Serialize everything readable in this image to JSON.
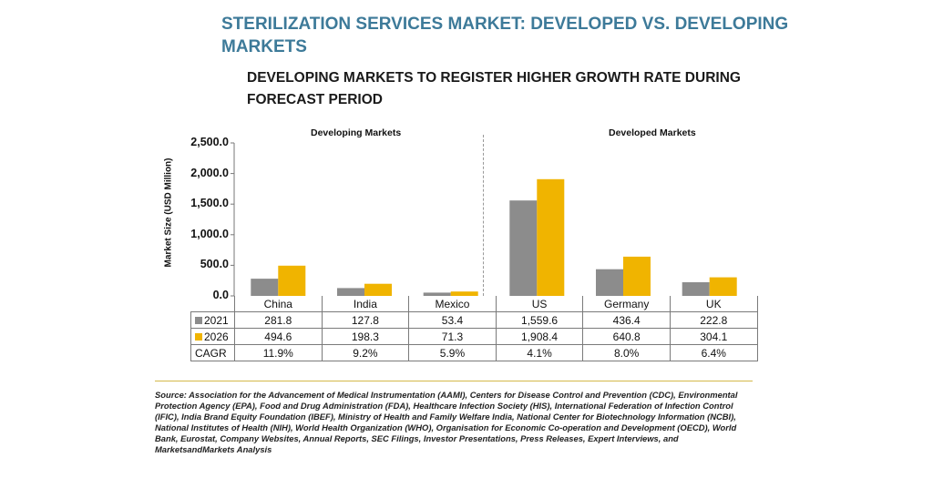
{
  "title": "STERILIZATION SERVICES MARKET: DEVELOPED VS. DEVELOPING MARKETS",
  "subtitle": "DEVELOPING MARKETS TO REGISTER HIGHER GROWTH RATE DURING FORECAST PERIOD",
  "source": "Source: Association for the Advancement of Medical Instrumentation (AAMI), Centers for Disease Control and Prevention (CDC), Environmental Protection Agency (EPA), Food and Drug Administration (FDA), Healthcare Infection Society (HIS), International Federation of Infection Control (IFIC), India Brand Equity Foundation (IBEF), Ministry of Health and Family Welfare India, National Center for Biotechnology Information (NCBI), National Institutes of Health (NIH), World Health Organization (WHO), Organisation for Economic Co-operation and Development (OECD), World Bank, Eurostat, Company Websites, Annual Reports, SEC Filings, Investor Presentations, Press Releases, Expert Interviews, and MarketsandMarkets Analysis",
  "colors": {
    "s2021": "#8c8c8c",
    "s2026": "#f0b400",
    "title": "#3d7a99"
  },
  "chart_data": {
    "type": "bar",
    "ylabel": "Market Size (USD Million)",
    "ylim": [
      0,
      2500
    ],
    "yticks": [
      "2,500.0",
      "2,000.0",
      "1,500.0",
      "1,000.0",
      "500.0",
      "0.0"
    ],
    "groups": [
      {
        "label": "Developing Markets",
        "categories": [
          "China",
          "India",
          "Mexico"
        ]
      },
      {
        "label": "Developed Markets",
        "categories": [
          "US",
          "Germany",
          "UK"
        ]
      }
    ],
    "categories": [
      "China",
      "India",
      "Mexico",
      "US",
      "Germany",
      "UK"
    ],
    "series": [
      {
        "name": "2021",
        "values": [
          281.8,
          127.8,
          53.4,
          1559.6,
          436.4,
          222.8
        ],
        "labels": [
          "281.8",
          "127.8",
          "53.4",
          "1,559.6",
          "436.4",
          "222.8"
        ]
      },
      {
        "name": "2026",
        "values": [
          494.6,
          198.3,
          71.3,
          1908.4,
          640.8,
          304.1
        ],
        "labels": [
          "494.6",
          "198.3",
          "71.3",
          "1,908.4",
          "640.8",
          "304.1"
        ]
      }
    ],
    "cagr": {
      "name": "CAGR",
      "values": [
        "11.9%",
        "9.2%",
        "5.9%",
        "4.1%",
        "8.0%",
        "6.4%"
      ]
    }
  }
}
